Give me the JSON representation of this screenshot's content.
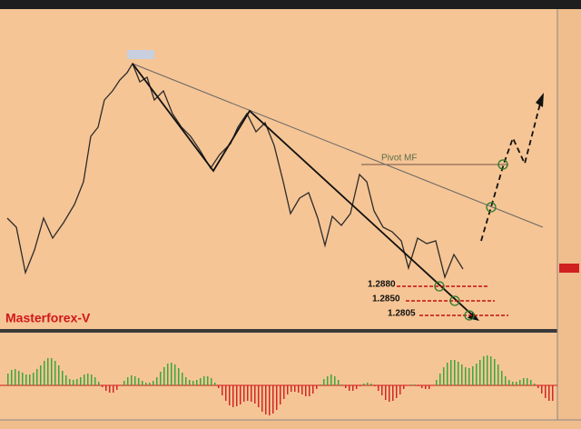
{
  "annotations": {
    "pivot": "Pivot MF",
    "levels": [
      "1.2880",
      "1.2850",
      "1.2805"
    ],
    "watermark": "Masterforex-V"
  }
}
